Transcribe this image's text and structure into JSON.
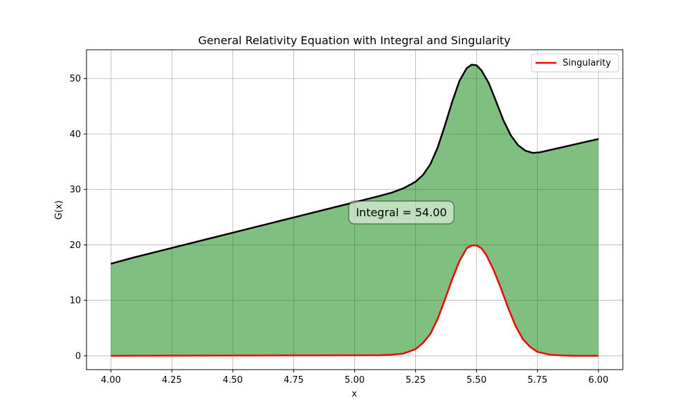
{
  "chart_data": {
    "type": "area",
    "title": "General Relativity Equation with Integral and Singularity",
    "xlabel": "x",
    "ylabel": "G(x)",
    "xlim": [
      3.9,
      6.1
    ],
    "ylim": [
      -2.5,
      55.2
    ],
    "xticks": [
      "4.00",
      "4.25",
      "4.50",
      "4.75",
      "5.00",
      "5.25",
      "5.50",
      "5.75",
      "6.00"
    ],
    "yticks": [
      "0",
      "10",
      "20",
      "30",
      "40",
      "50"
    ],
    "grid": true,
    "legend": {
      "position": "top-right",
      "entries": [
        "Singularity"
      ]
    },
    "annotation": {
      "text": "Integral = 54.00",
      "x": 5.23,
      "y": 25.8
    },
    "series": [
      {
        "role": "main",
        "color": "#000000",
        "fill": "#008000",
        "x": [
          4.0,
          4.1,
          4.2,
          4.3,
          4.4,
          4.5,
          4.6,
          4.7,
          4.8,
          4.9,
          5.0,
          5.1,
          5.15,
          5.2,
          5.25,
          5.28,
          5.31,
          5.34,
          5.37,
          5.4,
          5.43,
          5.46,
          5.48,
          5.5,
          5.52,
          5.55,
          5.58,
          5.61,
          5.64,
          5.67,
          5.7,
          5.73,
          5.76,
          5.8,
          5.85,
          5.9,
          5.95,
          6.0
        ],
        "y": [
          16.6,
          17.8,
          18.9,
          20.0,
          21.1,
          22.2,
          23.3,
          24.4,
          25.5,
          26.6,
          27.7,
          28.8,
          29.4,
          30.2,
          31.4,
          32.6,
          34.5,
          37.5,
          41.5,
          45.8,
          49.6,
          51.9,
          52.5,
          52.4,
          51.5,
          49.2,
          45.9,
          42.5,
          39.8,
          38.0,
          37.0,
          36.6,
          36.7,
          37.1,
          37.6,
          38.1,
          38.6,
          39.1
        ]
      },
      {
        "name": "Singularity",
        "role": "singularity",
        "color": "#ff0000",
        "x": [
          4.0,
          5.1,
          5.15,
          5.2,
          5.25,
          5.28,
          5.31,
          5.34,
          5.37,
          5.4,
          5.43,
          5.46,
          5.48,
          5.5,
          5.52,
          5.54,
          5.57,
          5.6,
          5.63,
          5.66,
          5.69,
          5.72,
          5.75,
          5.8,
          5.85,
          5.9,
          6.0
        ],
        "y": [
          0,
          0.1,
          0.2,
          0.4,
          1.2,
          2.3,
          3.9,
          6.6,
          10.1,
          13.8,
          17.1,
          19.4,
          19.9,
          19.9,
          19.4,
          18.2,
          15.5,
          12.2,
          8.6,
          5.4,
          3.0,
          1.6,
          0.7,
          0.2,
          0.05,
          0.0,
          0
        ]
      }
    ]
  }
}
